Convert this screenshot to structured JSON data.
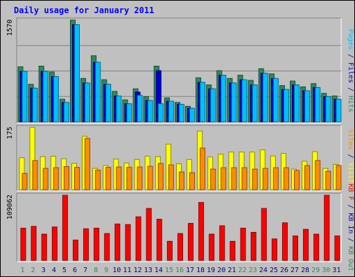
{
  "chart_data": {
    "type": "bar",
    "title": "Daily usage for January 2011",
    "categories": [
      "1",
      "2",
      "3",
      "4",
      "5",
      "6",
      "7",
      "8",
      "9",
      "10",
      "11",
      "12",
      "13",
      "14",
      "15",
      "16",
      "17",
      "18",
      "19",
      "20",
      "21",
      "22",
      "23",
      "24",
      "25",
      "26",
      "27",
      "28",
      "29",
      "30",
      "31"
    ],
    "weekend_days": [
      "1",
      "2",
      "8",
      "9",
      "15",
      "16",
      "22",
      "23",
      "29",
      "30"
    ],
    "panels": [
      {
        "id": "top",
        "ymax_label": "1570",
        "ylim": [
          0,
          1570
        ],
        "right_label": [
          {
            "text": "Pages",
            "color": "#00BFFF"
          },
          {
            "text": " / ",
            "color": "#000080"
          },
          {
            "text": "Files",
            "color": "#0000CC"
          },
          {
            "text": " / ",
            "color": "#000080"
          },
          {
            "text": "Hits",
            "color": "#2E8B57"
          }
        ],
        "series": [
          {
            "name": "Hits",
            "color": "#2E8B57",
            "values": [
              850,
              580,
              860,
              770,
              350,
              1570,
              670,
              1020,
              650,
              470,
              340,
              510,
              390,
              860,
              370,
              300,
              240,
              680,
              570,
              790,
              670,
              720,
              640,
              820,
              740,
              560,
              630,
              540,
              590,
              440,
              400
            ]
          },
          {
            "name": "Files",
            "color": "#0000CC",
            "values": [
              780,
              520,
              780,
              700,
              300,
              1500,
              600,
              920,
              580,
              400,
              280,
              460,
              330,
              790,
              320,
              270,
              210,
              610,
              510,
              720,
              600,
              650,
              570,
              750,
              670,
              500,
              570,
              480,
              530,
              390,
              350
            ]
          },
          {
            "name": "Pages",
            "color": "#00BFFF",
            "values": [
              780,
              520,
              780,
              700,
              300,
              1500,
              600,
              920,
              580,
              400,
              280,
              410,
              330,
              280,
              320,
              270,
              210,
              610,
              510,
              720,
              600,
              650,
              570,
              750,
              670,
              500,
              570,
              480,
              530,
              390,
              350
            ]
          }
        ]
      },
      {
        "id": "middle",
        "ymax_label": "175",
        "ylim": [
          0,
          175
        ],
        "right_label": [
          {
            "text": "Sites",
            "color": "#FF8C00"
          },
          {
            "text": " / ",
            "color": "#000080"
          },
          {
            "text": "Visits",
            "color": "#FFFF00"
          }
        ],
        "series": [
          {
            "name": "Visits",
            "color": "#FFFF00",
            "values": [
              90,
              175,
              93,
              94,
              87,
              74,
              150,
              60,
              68,
              86,
              75,
              85,
              94,
              93,
              128,
              73,
              85,
              165,
              92,
              100,
              106,
              106,
              106,
              112,
              95,
              102,
              58,
              80,
              107,
              60,
              71
            ]
          },
          {
            "name": "Sites",
            "color": "#FF8C00",
            "values": [
              46,
              82,
              60,
              62,
              65,
              63,
              144,
              55,
              63,
              64,
              63,
              64,
              66,
              74,
              70,
              50,
              48,
              117,
              58,
              62,
              62,
              62,
              58,
              60,
              62,
              62,
              54,
              68,
              82,
              52,
              68
            ]
          }
        ]
      },
      {
        "id": "bottom",
        "ymax_label": "109062",
        "ylim": [
          0,
          109062
        ],
        "right_label": [
          {
            "text": "KB F",
            "color": "#FF0000"
          },
          {
            "text": " / ",
            "color": "#000080"
          },
          {
            "text": "KB In",
            "color": "#0000CC"
          },
          {
            "text": " / ",
            "color": "#000080"
          },
          {
            "text": "KB Out",
            "color": "#2E8B57"
          }
        ],
        "series": [
          {
            "name": "KB F",
            "color": "#FF0000",
            "values": [
              54000,
              57000,
              44000,
              56000,
              109062,
              34000,
              53000,
              54000,
              45000,
              61000,
              60000,
              73000,
              87000,
              69000,
              32000,
              45000,
              62000,
              97000,
              44000,
              58000,
              32000,
              54000,
              47000,
              87000,
              36000,
              63000,
              41000,
              52000,
              44000,
              109062,
              41000
            ]
          }
        ]
      }
    ]
  }
}
